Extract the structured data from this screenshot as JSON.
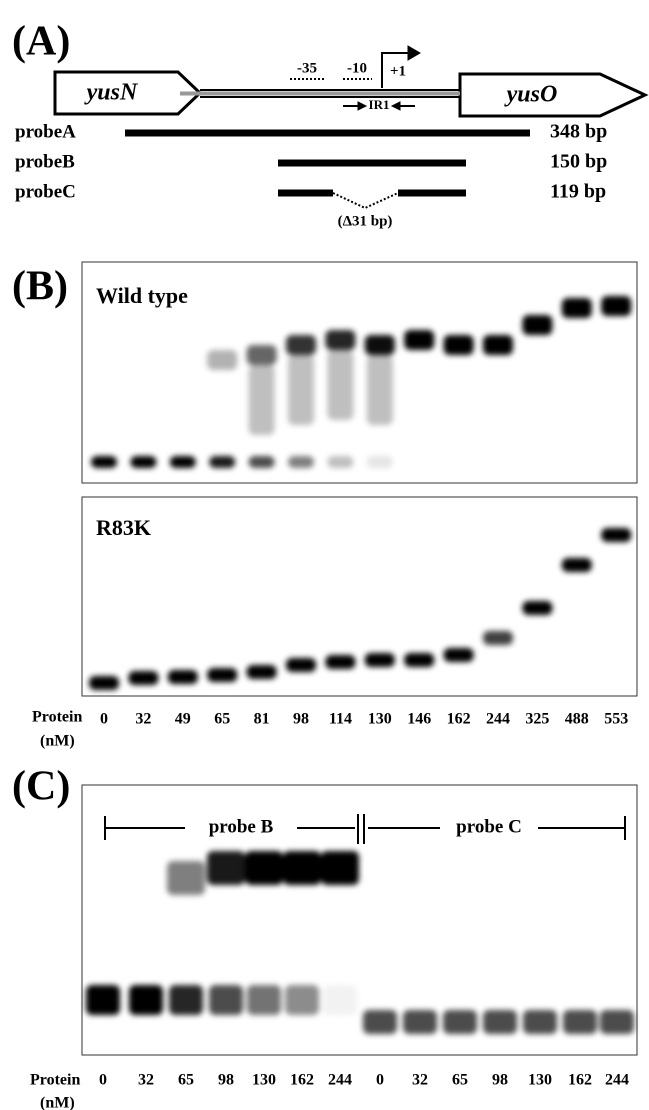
{
  "panel_a": {
    "label": "(A)",
    "genes": [
      "yusN",
      "yusO"
    ],
    "promoter": [
      "-35",
      "-10",
      "+1"
    ],
    "repeat": "IR1",
    "probes": [
      {
        "name": "probeA",
        "size": "348 bp"
      },
      {
        "name": "probeB",
        "size": "150 bp"
      },
      {
        "name": "probeC",
        "size": "119 bp"
      }
    ],
    "deletion": "(Δ31 bp)"
  },
  "panel_b": {
    "label": "(B)",
    "gels": [
      "Wild type",
      "R83K"
    ],
    "lane_label": "Protein",
    "unit": "(nM)",
    "concentrations": [
      0,
      32,
      49,
      65,
      81,
      98,
      114,
      130,
      146,
      162,
      244,
      325,
      488,
      553
    ]
  },
  "panel_c": {
    "label": "(C)",
    "groups": [
      "probe B",
      "probe C"
    ],
    "lane_label": "Protein",
    "unit": "(nM)",
    "concentrations": [
      0,
      32,
      65,
      98,
      130,
      162,
      244,
      0,
      32,
      65,
      98,
      130,
      162,
      244
    ]
  }
}
